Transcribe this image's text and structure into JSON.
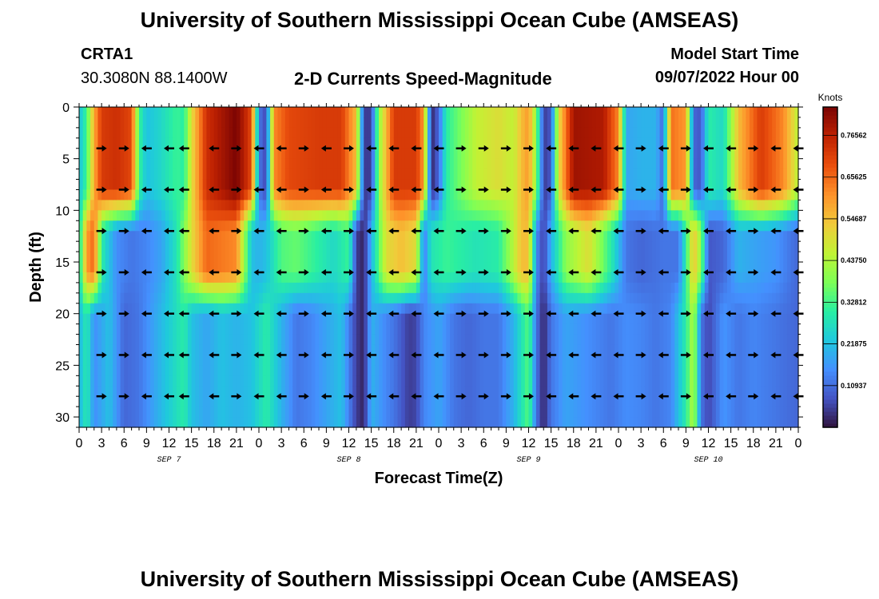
{
  "header": {
    "title": "University of Southern Mississippi Ocean Cube (AMSEAS)",
    "station": "CRTA1",
    "coords": "30.3080N  88.1400W",
    "subtitle": "2-D Currents Speed-Magnitude",
    "model_label": "Model Start Time",
    "model_time": "09/07/2022 Hour 00"
  },
  "footer": {
    "title": "University of Southern Mississippi Ocean Cube (AMSEAS)"
  },
  "colors": {
    "background": "#ffffff",
    "arrow": "#000000",
    "colormap": [
      "#30123b",
      "#4454c4",
      "#4490fe",
      "#1fc8de",
      "#29efa2",
      "#7dff56",
      "#c1f334",
      "#f1ca3a",
      "#fe922a",
      "#ea4f0d",
      "#be2102",
      "#7a0403"
    ]
  },
  "chart_data": {
    "type": "heatmap",
    "title": "2-D Currents Speed-Magnitude",
    "xlabel": "Forecast Time(Z)",
    "ylabel": "Depth (ft)",
    "x_tick_labels": [
      "0",
      "3",
      "6",
      "9",
      "12",
      "15",
      "18",
      "21",
      "0",
      "3",
      "6",
      "9",
      "12",
      "15",
      "18",
      "21",
      "0",
      "3",
      "6",
      "9",
      "12",
      "15",
      "18",
      "21",
      "0",
      "3",
      "6",
      "9",
      "12",
      "15",
      "18",
      "21",
      "0"
    ],
    "x_tick_hours": [
      0,
      3,
      6,
      9,
      12,
      15,
      18,
      21,
      24,
      27,
      30,
      33,
      36,
      39,
      42,
      45,
      48,
      51,
      54,
      57,
      60,
      63,
      66,
      69,
      72,
      75,
      78,
      81,
      84,
      87,
      90,
      93,
      96
    ],
    "date_labels": [
      {
        "label": "SEP 7",
        "hour": 12
      },
      {
        "label": "SEP 8",
        "hour": 36
      },
      {
        "label": "SEP 9",
        "hour": 60
      },
      {
        "label": "SEP 10",
        "hour": 84
      }
    ],
    "xlim": [
      0,
      96
    ],
    "y_ticks": [
      0,
      5,
      10,
      15,
      20,
      25,
      30
    ],
    "ylim": [
      0,
      31
    ],
    "y_inverted": true,
    "colorbar": {
      "unit": "Knots",
      "range": [
        0,
        0.84
      ],
      "tick_values": [
        0.10937,
        0.21875,
        0.32812,
        0.4375,
        0.54687,
        0.65625,
        0.76562
      ],
      "tick_labels": [
        "0.10937",
        "0.21875",
        "0.32812",
        "0.43750",
        "0.54687",
        "0.65625",
        "0.76562"
      ]
    },
    "speed_model": {
      "description": "Speed (knots) approximated as piecewise-linear profiles by depth band over forecast hour",
      "bands": [
        {
          "name": "upper",
          "depths": [
            0,
            4,
            8
          ],
          "profile": [
            [
              0,
              0.22
            ],
            [
              1,
              0.32
            ],
            [
              2,
              0.58
            ],
            [
              3,
              0.72
            ],
            [
              5,
              0.74
            ],
            [
              7,
              0.7
            ],
            [
              8,
              0.32
            ],
            [
              9,
              0.22
            ],
            [
              11,
              0.26
            ],
            [
              13,
              0.32
            ],
            [
              14,
              0.3
            ],
            [
              15,
              0.5
            ],
            [
              17,
              0.74
            ],
            [
              21,
              0.84
            ],
            [
              23,
              0.7
            ],
            [
              24,
              0.12
            ],
            [
              25,
              0.06
            ],
            [
              26,
              0.62
            ],
            [
              28,
              0.7
            ],
            [
              32,
              0.72
            ],
            [
              35,
              0.72
            ],
            [
              37,
              0.55
            ],
            [
              38,
              0.05
            ],
            [
              39,
              0.05
            ],
            [
              40,
              0.4
            ],
            [
              42,
              0.72
            ],
            [
              45,
              0.72
            ],
            [
              46,
              0.6
            ],
            [
              47,
              0.02
            ],
            [
              48,
              0.1
            ],
            [
              49,
              0.3
            ],
            [
              51,
              0.38
            ],
            [
              53,
              0.46
            ],
            [
              56,
              0.5
            ],
            [
              58,
              0.46
            ],
            [
              59,
              0.55
            ],
            [
              60,
              0.6
            ],
            [
              61,
              0.4
            ],
            [
              62,
              0.05
            ],
            [
              63,
              0.08
            ],
            [
              64,
              0.5
            ],
            [
              66,
              0.8
            ],
            [
              70,
              0.78
            ],
            [
              72,
              0.62
            ],
            [
              73,
              0.18
            ],
            [
              75,
              0.2
            ],
            [
              77,
              0.2
            ],
            [
              78,
              0.1
            ],
            [
              79,
              0.65
            ],
            [
              81,
              0.6
            ],
            [
              82,
              0.1
            ],
            [
              83,
              0.08
            ],
            [
              84,
              0.3
            ],
            [
              86,
              0.26
            ],
            [
              88,
              0.55
            ],
            [
              91,
              0.72
            ],
            [
              94,
              0.62
            ],
            [
              96,
              0.45
            ]
          ]
        },
        {
          "name": "middle",
          "depths": [
            12,
            16
          ],
          "profile": [
            [
              0,
              0.25
            ],
            [
              1,
              0.6
            ],
            [
              2,
              0.66
            ],
            [
              3,
              0.3
            ],
            [
              5,
              0.15
            ],
            [
              7,
              0.12
            ],
            [
              9,
              0.14
            ],
            [
              11,
              0.18
            ],
            [
              13,
              0.28
            ],
            [
              15,
              0.5
            ],
            [
              17,
              0.66
            ],
            [
              21,
              0.62
            ],
            [
              23,
              0.22
            ],
            [
              24,
              0.2
            ],
            [
              25,
              0.22
            ],
            [
              27,
              0.34
            ],
            [
              29,
              0.36
            ],
            [
              32,
              0.3
            ],
            [
              34,
              0.26
            ],
            [
              36,
              0.32
            ],
            [
              37,
              0.05
            ],
            [
              38,
              0.02
            ],
            [
              39,
              0.2
            ],
            [
              41,
              0.5
            ],
            [
              43,
              0.55
            ],
            [
              45,
              0.5
            ],
            [
              46,
              0.12
            ],
            [
              47,
              0.28
            ],
            [
              49,
              0.32
            ],
            [
              51,
              0.3
            ],
            [
              53,
              0.28
            ],
            [
              56,
              0.3
            ],
            [
              58,
              0.45
            ],
            [
              59,
              0.55
            ],
            [
              60,
              0.55
            ],
            [
              61,
              0.15
            ],
            [
              62,
              0.05
            ],
            [
              63,
              0.2
            ],
            [
              65,
              0.4
            ],
            [
              68,
              0.5
            ],
            [
              71,
              0.3
            ],
            [
              73,
              0.12
            ],
            [
              75,
              0.1
            ],
            [
              78,
              0.12
            ],
            [
              80,
              0.12
            ],
            [
              81,
              0.3
            ],
            [
              82,
              0.55
            ],
            [
              83,
              0.4
            ],
            [
              84,
              0.08
            ],
            [
              86,
              0.1
            ],
            [
              88,
              0.2
            ],
            [
              90,
              0.18
            ],
            [
              93,
              0.16
            ],
            [
              96,
              0.1
            ]
          ]
        },
        {
          "name": "lower",
          "depths": [
            20,
            24,
            28,
            31
          ],
          "profile": [
            [
              0,
              0.2
            ],
            [
              1,
              0.3
            ],
            [
              2,
              0.15
            ],
            [
              4,
              0.22
            ],
            [
              6,
              0.1
            ],
            [
              8,
              0.12
            ],
            [
              10,
              0.18
            ],
            [
              12,
              0.24
            ],
            [
              14,
              0.3
            ],
            [
              15,
              0.22
            ],
            [
              17,
              0.18
            ],
            [
              19,
              0.22
            ],
            [
              21,
              0.2
            ],
            [
              23,
              0.22
            ],
            [
              25,
              0.3
            ],
            [
              27,
              0.2
            ],
            [
              29,
              0.12
            ],
            [
              31,
              0.14
            ],
            [
              33,
              0.18
            ],
            [
              35,
              0.22
            ],
            [
              37,
              0.05
            ],
            [
              38,
              0.02
            ],
            [
              39,
              0.2
            ],
            [
              41,
              0.14
            ],
            [
              42,
              0.12
            ],
            [
              44,
              0.05
            ],
            [
              45,
              0.06
            ],
            [
              46,
              0.14
            ],
            [
              48,
              0.18
            ],
            [
              50,
              0.12
            ],
            [
              52,
              0.1
            ],
            [
              54,
              0.12
            ],
            [
              56,
              0.12
            ],
            [
              58,
              0.2
            ],
            [
              60,
              0.35
            ],
            [
              61,
              0.12
            ],
            [
              62,
              0.02
            ],
            [
              63,
              0.12
            ],
            [
              65,
              0.18
            ],
            [
              67,
              0.16
            ],
            [
              69,
              0.14
            ],
            [
              71,
              0.12
            ],
            [
              73,
              0.15
            ],
            [
              75,
              0.14
            ],
            [
              77,
              0.12
            ],
            [
              79,
              0.14
            ],
            [
              81,
              0.3
            ],
            [
              82,
              0.45
            ],
            [
              83,
              0.12
            ],
            [
              84,
              0.06
            ],
            [
              86,
              0.16
            ],
            [
              88,
              0.12
            ],
            [
              90,
              0.14
            ],
            [
              93,
              0.12
            ],
            [
              96,
              0.1
            ]
          ]
        }
      ]
    },
    "arrow_rows": {
      "depths": [
        4,
        8,
        12,
        16,
        20,
        24,
        28
      ],
      "hours": [
        3,
        6,
        9,
        12,
        14,
        18,
        21,
        24,
        27,
        30,
        33,
        36,
        39,
        42,
        45,
        48,
        51,
        54,
        57,
        60,
        63,
        66,
        69,
        72,
        75,
        78,
        81,
        84,
        87,
        90,
        93,
        96
      ],
      "direction_pattern": [
        "E",
        "E",
        "W",
        "W",
        "W",
        "W",
        "E",
        "W",
        "W",
        "E",
        "W",
        "E",
        "W",
        "W",
        "W",
        "W",
        "E",
        "E",
        "E",
        "E",
        "W",
        "W",
        "W",
        "W",
        "E",
        "W",
        "E",
        "W",
        "W",
        "E",
        "W",
        "W"
      ]
    }
  }
}
